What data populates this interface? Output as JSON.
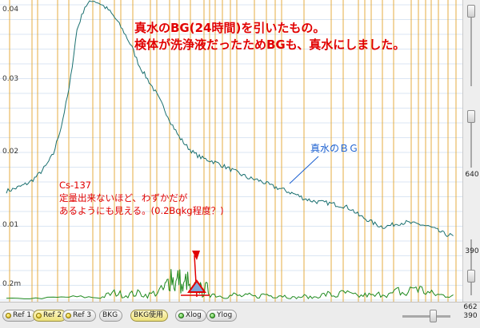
{
  "chart_data": {
    "type": "line",
    "title": "",
    "xlabel": "",
    "ylabel": "",
    "y_ticks": [
      {
        "label": "0.04",
        "value": 0.04
      },
      {
        "label": "0.03",
        "value": 0.03
      },
      {
        "label": "0.02",
        "value": 0.02
      },
      {
        "label": "0.01",
        "value": 0.01
      },
      {
        "label": "0.2m",
        "value": 0.0002
      }
    ],
    "grid": true,
    "series": [
      {
        "color": "#1a7070",
        "points": [
          [
            0,
            0.0145
          ],
          [
            10,
            0.0148
          ],
          [
            20,
            0.0152
          ],
          [
            30,
            0.0157
          ],
          [
            40,
            0.0166
          ],
          [
            50,
            0.0178
          ],
          [
            60,
            0.0195
          ],
          [
            70,
            0.0232
          ],
          [
            80,
            0.0282
          ],
          [
            90,
            0.0361
          ],
          [
            100,
            0.0392
          ],
          [
            110,
            0.0401
          ],
          [
            120,
            0.0396
          ],
          [
            130,
            0.0388
          ],
          [
            140,
            0.0375
          ],
          [
            150,
            0.0358
          ],
          [
            160,
            0.0338
          ],
          [
            170,
            0.0312
          ],
          [
            180,
            0.0295
          ],
          [
            190,
            0.0278
          ],
          [
            200,
            0.0258
          ],
          [
            210,
            0.0237
          ],
          [
            220,
            0.0218
          ],
          [
            230,
            0.0205
          ],
          [
            240,
            0.0195
          ],
          [
            250,
            0.0189
          ],
          [
            260,
            0.0186
          ],
          [
            270,
            0.0182
          ],
          [
            280,
            0.0177
          ],
          [
            290,
            0.0172
          ],
          [
            300,
            0.0167
          ],
          [
            310,
            0.0162
          ],
          [
            320,
            0.016
          ],
          [
            330,
            0.0156
          ],
          [
            340,
            0.0151
          ],
          [
            350,
            0.0148
          ],
          [
            360,
            0.0144
          ],
          [
            370,
            0.014
          ],
          [
            380,
            0.0135
          ],
          [
            390,
            0.0132
          ],
          [
            400,
            0.013
          ],
          [
            410,
            0.0129
          ],
          [
            420,
            0.0127
          ],
          [
            430,
            0.0125
          ],
          [
            440,
            0.0121
          ],
          [
            450,
            0.0112
          ],
          [
            460,
            0.0107
          ],
          [
            470,
            0.0101
          ],
          [
            480,
            0.0097
          ],
          [
            490,
            0.0099
          ],
          [
            500,
            0.0102
          ],
          [
            510,
            0.0103
          ],
          [
            520,
            0.0101
          ],
          [
            530,
            0.01
          ],
          [
            540,
            0.0097
          ],
          [
            550,
            0.0092
          ],
          [
            560,
            0.0087
          ],
          [
            570,
            0.0085
          ]
        ]
      },
      {
        "color": "#1f8a1f",
        "points": [
          [
            0,
            0.0001
          ],
          [
            30,
            0.0001
          ],
          [
            60,
            0.0002
          ],
          [
            80,
            0.0003
          ],
          [
            100,
            0.0003
          ],
          [
            120,
            0.0002
          ],
          [
            130,
            0.0006
          ],
          [
            140,
            0.0009
          ],
          [
            150,
            0.0005
          ],
          [
            160,
            0.0007
          ],
          [
            170,
            0.0008
          ],
          [
            180,
            0.0005
          ],
          [
            190,
            0.0009
          ],
          [
            200,
            0.0012
          ],
          [
            205,
            0.002
          ],
          [
            210,
            0.0035
          ],
          [
            215,
            0.0018
          ],
          [
            220,
            0.003
          ],
          [
            225,
            0.0012
          ],
          [
            230,
            0.0028
          ],
          [
            235,
            0.0009
          ],
          [
            240,
            0.0014
          ],
          [
            245,
            0.002
          ],
          [
            250,
            0.0008
          ],
          [
            255,
            0.0015
          ],
          [
            260,
            0.0008
          ],
          [
            270,
            0.0005
          ],
          [
            280,
            0.0003
          ],
          [
            290,
            0.0006
          ],
          [
            300,
            0.0004
          ],
          [
            310,
            0.0005
          ],
          [
            320,
            0.0003
          ],
          [
            330,
            0.0007
          ],
          [
            340,
            0.0004
          ],
          [
            350,
            0.0006
          ],
          [
            360,
            0.0003
          ],
          [
            370,
            0.0002
          ],
          [
            380,
            0.0004
          ],
          [
            390,
            0.0002
          ],
          [
            400,
            0.0005
          ],
          [
            410,
            0.0007
          ],
          [
            420,
            0.0004
          ],
          [
            430,
            0.0009
          ],
          [
            440,
            0.0006
          ],
          [
            450,
            0.0004
          ],
          [
            460,
            0.0006
          ],
          [
            470,
            0.0004
          ],
          [
            480,
            0.0009
          ],
          [
            490,
            0.0006
          ],
          [
            500,
            0.0011
          ],
          [
            510,
            0.0006
          ],
          [
            520,
            0.0018
          ],
          [
            530,
            0.0012
          ],
          [
            540,
            0.0008
          ],
          [
            550,
            0.0006
          ],
          [
            560,
            0.0005
          ],
          [
            570,
            0.0006
          ]
        ]
      }
    ]
  },
  "annotations": {
    "main_line1": "真水のBG(24時間)を引いたもの。",
    "main_line2": "検体が洗浄液だったためBGも、真水にしました。",
    "cs_label": "Cs-137",
    "cs_line1": "定量出来ないほど、わずかだが",
    "cs_line2": "あるようにも見える。(0.2Bqkg程度？)",
    "bg_label": "真水のＢＧ"
  },
  "side": {
    "upper_value": "640",
    "lower_value": "390"
  },
  "bottom": {
    "value_top": "662",
    "value_bottom": "390"
  },
  "toolbar": {
    "ref1": "Ref 1",
    "ref2": "Ref 2",
    "ref3": "Ref 3",
    "bkg": "BKG",
    "bkg_use": "BKG使用",
    "xlog": "Xlog",
    "ylog": "Ylog"
  },
  "colors": {
    "spectrum": "#1a7070",
    "net": "#1f8a1f",
    "roi_lines": "#e0a020",
    "annotation_red": "#e10000",
    "annotation_blue": "#1a5fd0",
    "peak_fill": "#7fa6d8"
  }
}
